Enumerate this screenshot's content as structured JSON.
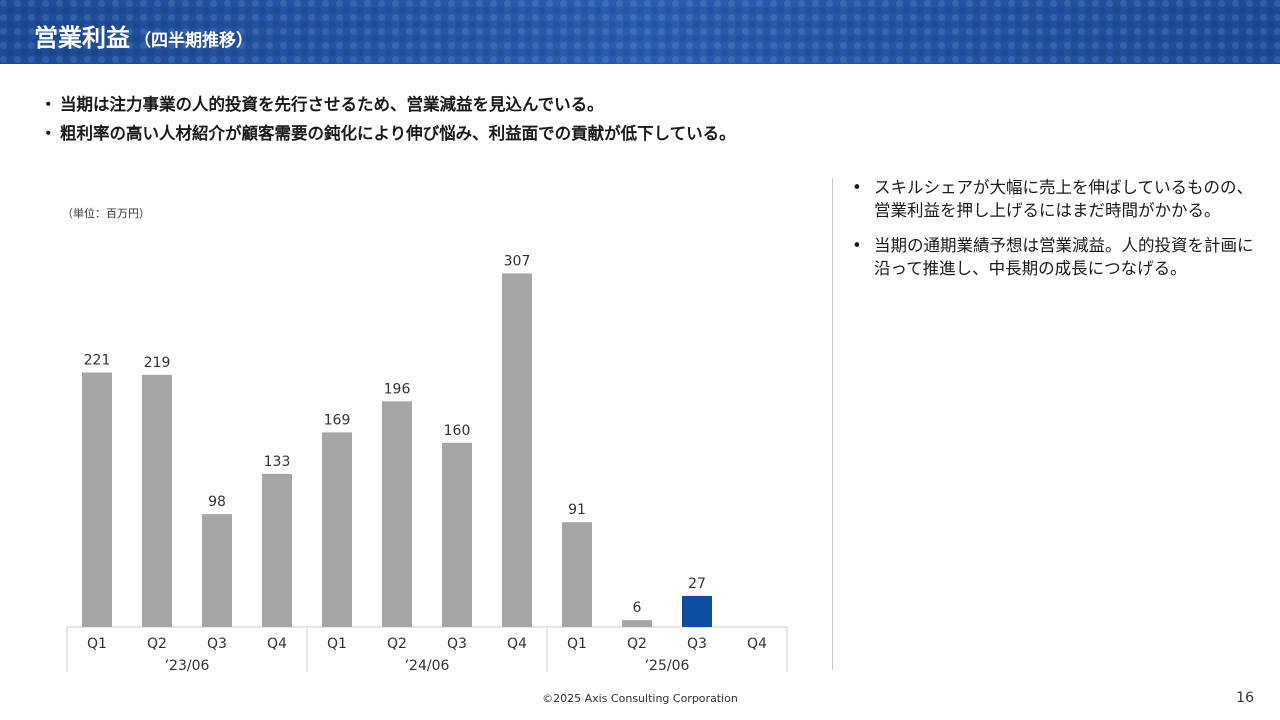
{
  "header": {
    "title": "営業利益",
    "subtitle": "（四半期推移）"
  },
  "bullets": [
    "当期は注力事業の人的投資を先行させるため、営業減益を見込んでいる。",
    "粗利率の高い人材紹介が顧客需要の鈍化により伸び悩み、利益面での貢献が低下している。"
  ],
  "bullet_marker": "・",
  "side_marker": "•",
  "side_notes": [
    "スキルシェアが大幅に売上を伸ばしているものの、営業利益を押し上げるにはまだ時間がかかる。",
    "当期の通期業績予想は営業減益。人的投資を計画に沿って推進し、中長期の成長につなげる。"
  ],
  "footer": {
    "copyright": "©2025 Axis Consulting Corporation",
    "page": "16"
  },
  "colors": {
    "bar": "#a6a6a6",
    "highlight": "#0b4ea2",
    "header": "#1e4f9e"
  },
  "chart_data": {
    "type": "bar",
    "unit_label": "（単位：百万円）",
    "groups": [
      {
        "label": "’23/06",
        "quarters": [
          "Q1",
          "Q2",
          "Q3",
          "Q4"
        ],
        "values": [
          221,
          219,
          98,
          133
        ]
      },
      {
        "label": "’24/06",
        "quarters": [
          "Q1",
          "Q2",
          "Q3",
          "Q4"
        ],
        "values": [
          169,
          196,
          160,
          307
        ]
      },
      {
        "label": "’25/06",
        "quarters": [
          "Q1",
          "Q2",
          "Q3",
          "Q4"
        ],
        "values": [
          91,
          6,
          27,
          null
        ]
      }
    ],
    "highlight": {
      "group": 2,
      "quarter": 2
    },
    "ylim": [
      0,
      330
    ]
  }
}
